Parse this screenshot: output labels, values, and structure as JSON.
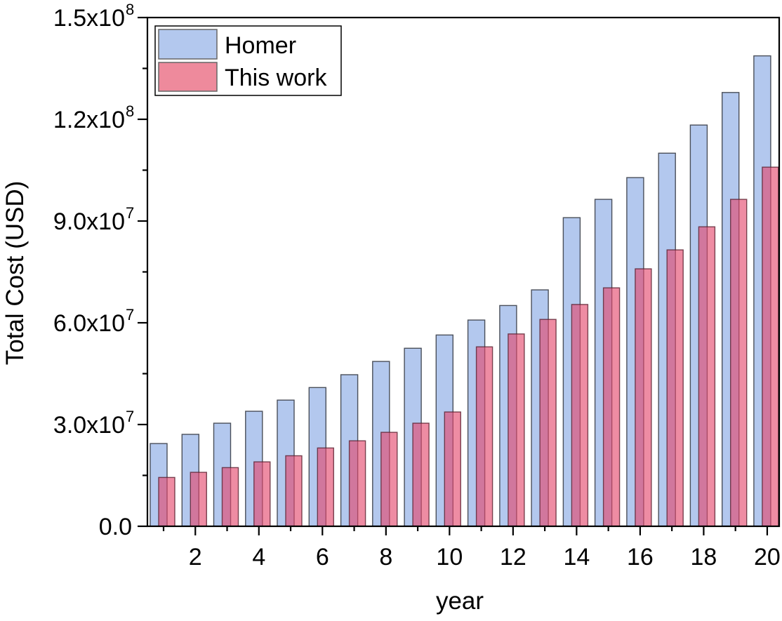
{
  "chart_data": {
    "type": "bar",
    "title": "",
    "xlabel": "year",
    "ylabel": "Total Cost (USD)",
    "ylim": [
      0,
      150000000
    ],
    "xlim": [
      0.4,
      20.6
    ],
    "grid": false,
    "legend_position": "upper-left",
    "categories": [
      1,
      2,
      3,
      4,
      5,
      6,
      7,
      8,
      9,
      10,
      11,
      12,
      13,
      14,
      15,
      16,
      17,
      18,
      19,
      20
    ],
    "x_tick_labels": [
      "2",
      "4",
      "6",
      "8",
      "10",
      "12",
      "14",
      "16",
      "18",
      "20"
    ],
    "x_tick_values": [
      2,
      4,
      6,
      8,
      10,
      12,
      14,
      16,
      18,
      20
    ],
    "y_ticks": [
      {
        "value": 0,
        "label": "0.0",
        "sup": ""
      },
      {
        "value": 30000000,
        "label": "3.0x10",
        "sup": "7"
      },
      {
        "value": 60000000,
        "label": "6.0x10",
        "sup": "7"
      },
      {
        "value": 90000000,
        "label": "9.0x10",
        "sup": "7"
      },
      {
        "value": 120000000,
        "label": "1.2x10",
        "sup": "8"
      },
      {
        "value": 150000000,
        "label": "1.5x10",
        "sup": "8"
      }
    ],
    "series": [
      {
        "name": "Homer",
        "color": "#b3c8ee",
        "values": [
          24400000,
          27100000,
          30400000,
          33900000,
          37200000,
          40900000,
          44700000,
          48600000,
          52500000,
          56400000,
          60800000,
          65100000,
          69700000,
          91000000,
          96400000,
          102800000,
          110000000,
          118300000,
          127900000,
          138700000
        ]
      },
      {
        "name": "This work",
        "color": "#ee8a9c",
        "values": [
          14400000,
          15900000,
          17300000,
          19000000,
          20800000,
          23100000,
          25200000,
          27700000,
          30400000,
          33700000,
          52900000,
          56700000,
          61000000,
          65400000,
          70300000,
          75900000,
          81500000,
          88300000,
          96400000,
          105900000
        ]
      }
    ]
  },
  "legend": {
    "items": [
      {
        "label": "Homer",
        "color": "#b3c8ee"
      },
      {
        "label": "This work",
        "color": "#ee8a9c"
      }
    ]
  },
  "axes": {
    "x_title": "year",
    "y_title": "Total Cost (USD)"
  }
}
